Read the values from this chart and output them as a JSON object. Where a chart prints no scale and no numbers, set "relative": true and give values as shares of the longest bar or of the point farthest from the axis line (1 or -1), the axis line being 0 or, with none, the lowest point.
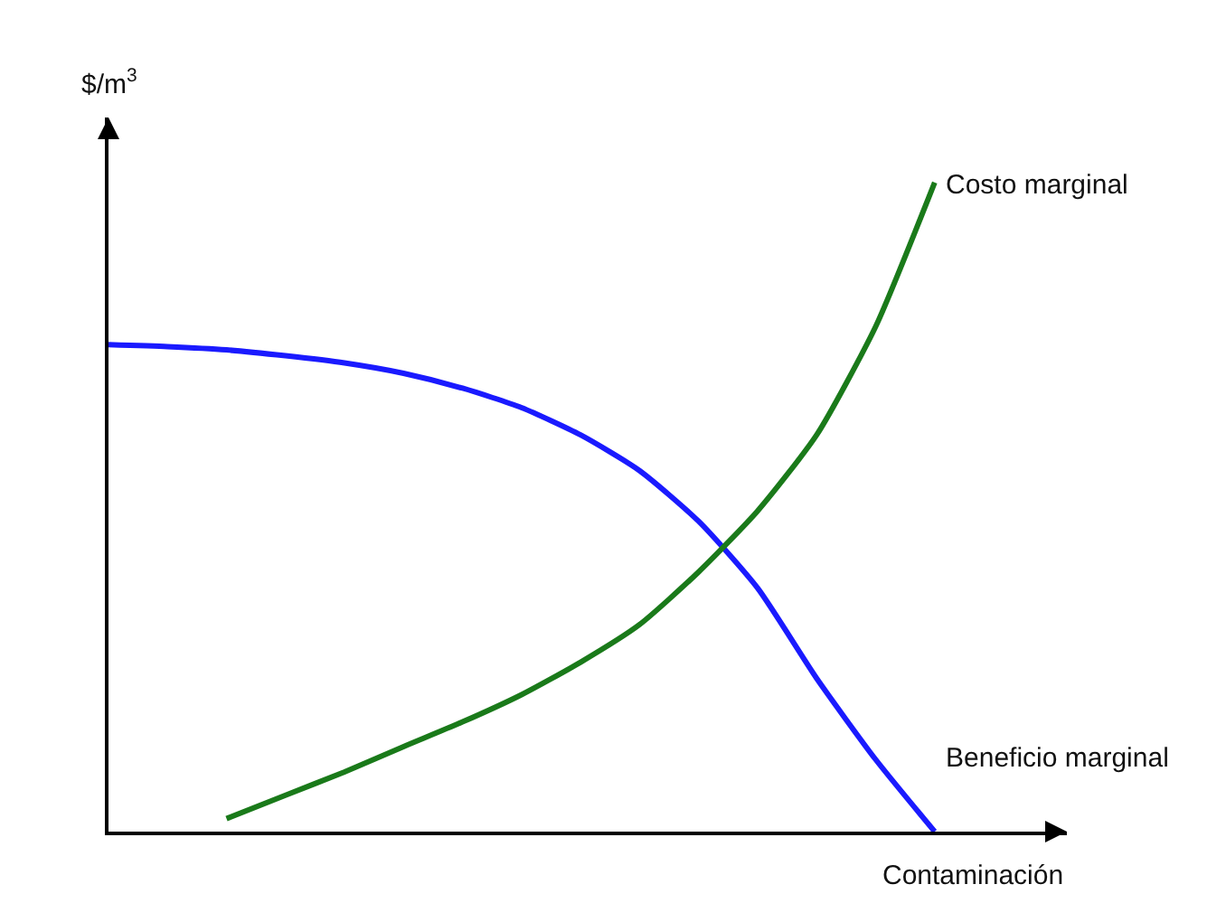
{
  "chart_data": {
    "type": "line",
    "relative": true,
    "xlabel": "Contaminación",
    "ylabel": "$/m$^{3}$",
    "categories": [
      null,
      null,
      null,
      null,
      null,
      null,
      null,
      null,
      null,
      null,
      null,
      null,
      null,
      null,
      null
    ],
    "series": [
      {
        "name": "Beneficio marginal",
        "color": "#1a1aff",
        "values": [
          0.75,
          0.747,
          0.742,
          0.733,
          0.722,
          0.706,
          0.683,
          0.653,
          0.611,
          0.556,
          0.478,
          0.375,
          0.236,
          0.111,
          0
        ]
      },
      {
        "name": "Costo marginal",
        "color": "#1a7a1a",
        "values": [
          null,
          null,
          0.02,
          0.056,
          0.092,
          0.131,
          0.169,
          0.211,
          0.261,
          0.319,
          0.4,
          0.494,
          0.611,
          0.778,
          1
        ]
      }
    ],
    "legend": false,
    "marker": "none",
    "line_style": "solid"
  }
}
